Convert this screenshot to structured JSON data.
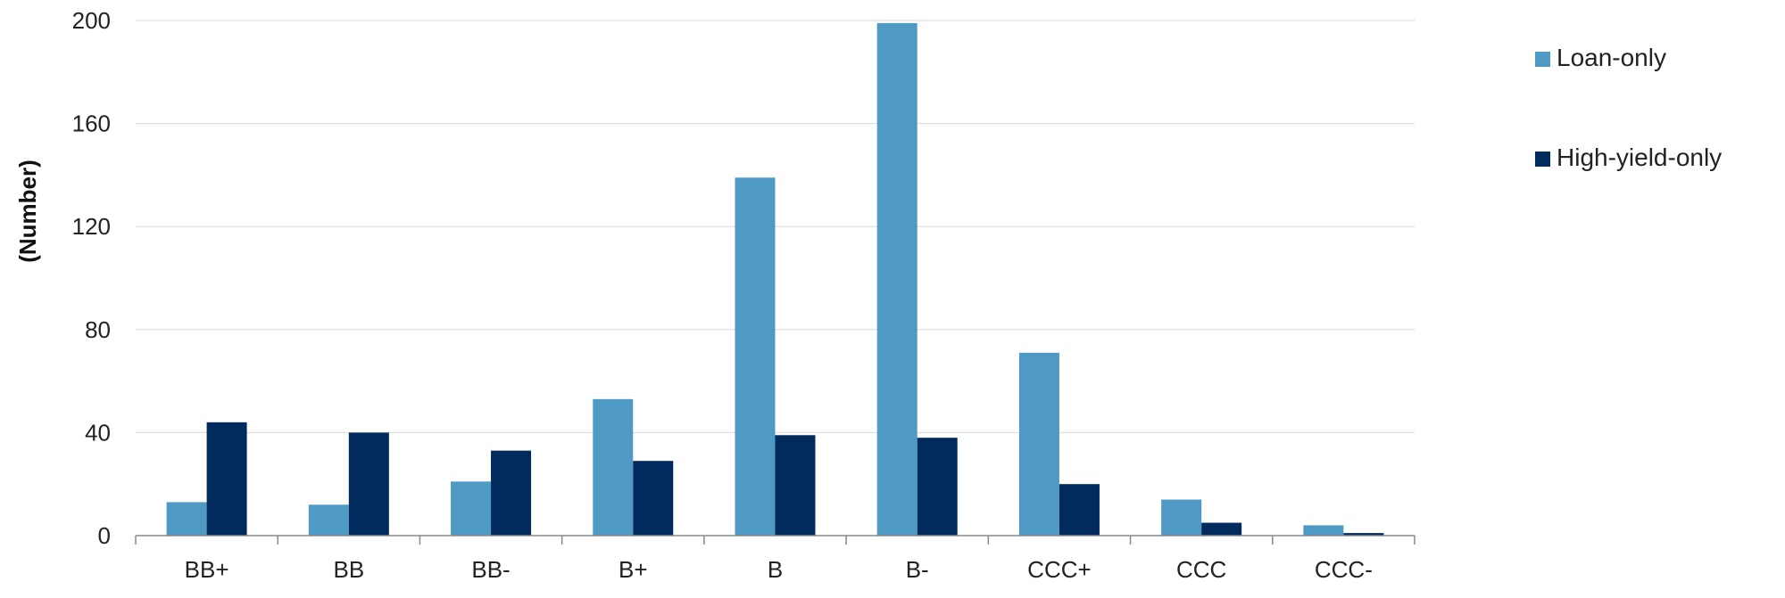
{
  "chart_data": {
    "type": "bar",
    "title": "",
    "xlabel": "",
    "ylabel": "(Number)",
    "ylim": [
      0,
      200
    ],
    "yticks": [
      "0",
      "40",
      "80",
      "120",
      "160",
      "200"
    ],
    "grid": true,
    "legend_position": "right",
    "categories": [
      "BB+",
      "BB",
      "BB-",
      "B+",
      "B",
      "B-",
      "CCC+",
      "CCC",
      "CCC-"
    ],
    "series": [
      {
        "name": "Loan-only",
        "color": "#4e9ac4",
        "values": [
          13,
          12,
          21,
          53,
          139,
          199,
          71,
          14,
          4
        ]
      },
      {
        "name": "High-yield-only",
        "color": "#002b5c",
        "values": [
          44,
          40,
          33,
          29,
          39,
          38,
          20,
          5,
          1
        ]
      }
    ]
  }
}
